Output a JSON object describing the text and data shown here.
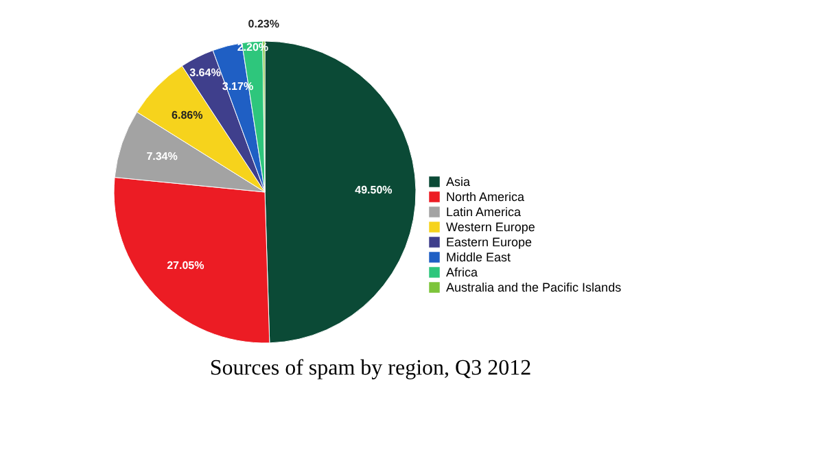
{
  "chart_data": {
    "type": "pie",
    "title": "Sources of spam by region, Q3 2012",
    "categories": [
      "Asia",
      "North America",
      "Latin America",
      "Western Europe",
      "Eastern Europe",
      "Middle East",
      "Africa",
      "Australia and the Pacific Islands"
    ],
    "values": [
      49.5,
      27.05,
      7.34,
      6.86,
      3.64,
      3.17,
      2.2,
      0.23
    ],
    "value_labels": [
      "49.50%",
      "27.05%",
      "7.34%",
      "6.86%",
      "3.64%",
      "3.17%",
      "2.20%",
      "0.23%"
    ],
    "colors": [
      "#0b4a36",
      "#ec1c24",
      "#a3a3a3",
      "#f6d31c",
      "#3f3f8c",
      "#1f5fc4",
      "#2ec67c",
      "#7dc43a"
    ],
    "legend": "right"
  }
}
